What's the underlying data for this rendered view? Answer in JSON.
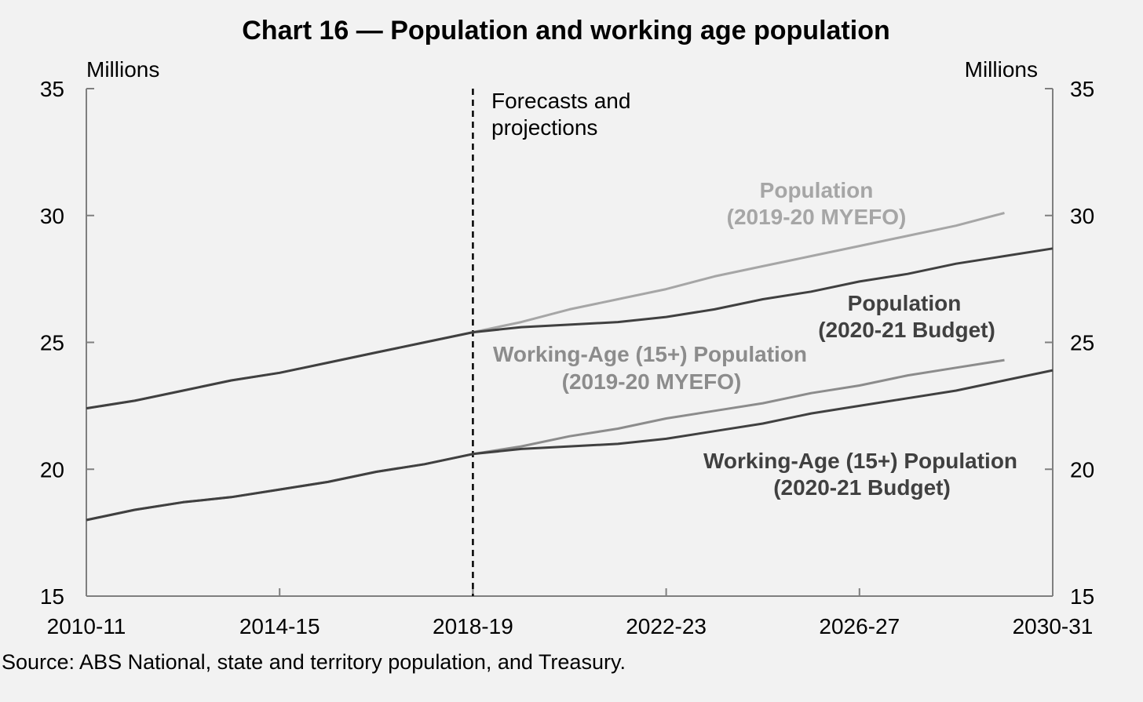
{
  "chart_data": {
    "type": "line",
    "title": "Chart 16 — Population and working age population",
    "left_axis_unit": "Millions",
    "right_axis_unit": "Millions",
    "ylim": [
      15,
      35
    ],
    "y_ticks": [
      "15",
      "20",
      "25",
      "30",
      "35"
    ],
    "x_tick_labels": [
      "2010-11",
      "2014-15",
      "2018-19",
      "2022-23",
      "2026-27",
      "2030-31"
    ],
    "forecast_label": [
      "Forecasts and",
      "projections"
    ],
    "source": "Source: ABS National, state and territory population, and Treasury.",
    "grid": false,
    "legend": "inline labels",
    "series": [
      {
        "name_lines": [
          "Population",
          "(2019-20 MYEFO)"
        ],
        "color": "#a6a6a6",
        "x": [
          "2010-11",
          "2011-12",
          "2012-13",
          "2013-14",
          "2014-15",
          "2015-16",
          "2016-17",
          "2017-18",
          "2018-19",
          "2019-20",
          "2020-21",
          "2021-22",
          "2022-23",
          "2023-24",
          "2024-25",
          "2025-26",
          "2026-27",
          "2027-28",
          "2028-29",
          "2029-30"
        ],
        "values": [
          22.4,
          22.7,
          23.1,
          23.5,
          23.8,
          24.2,
          24.6,
          25.0,
          25.4,
          25.8,
          26.3,
          26.7,
          27.1,
          27.6,
          28.0,
          28.4,
          28.8,
          29.2,
          29.6,
          30.1
        ]
      },
      {
        "name_lines": [
          "Population",
          "(2020-21 Budget)"
        ],
        "color": "#404040",
        "x": [
          "2010-11",
          "2011-12",
          "2012-13",
          "2013-14",
          "2014-15",
          "2015-16",
          "2016-17",
          "2017-18",
          "2018-19",
          "2019-20",
          "2020-21",
          "2021-22",
          "2022-23",
          "2023-24",
          "2024-25",
          "2025-26",
          "2026-27",
          "2027-28",
          "2028-29",
          "2029-30",
          "2030-31"
        ],
        "values": [
          22.4,
          22.7,
          23.1,
          23.5,
          23.8,
          24.2,
          24.6,
          25.0,
          25.4,
          25.6,
          25.7,
          25.8,
          26.0,
          26.3,
          26.7,
          27.0,
          27.4,
          27.7,
          28.1,
          28.4,
          28.7
        ]
      },
      {
        "name_lines": [
          "Working-Age (15+) Population",
          "(2019-20 MYEFO)"
        ],
        "color": "#8c8c8c",
        "x": [
          "2010-11",
          "2011-12",
          "2012-13",
          "2013-14",
          "2014-15",
          "2015-16",
          "2016-17",
          "2017-18",
          "2018-19",
          "2019-20",
          "2020-21",
          "2021-22",
          "2022-23",
          "2023-24",
          "2024-25",
          "2025-26",
          "2026-27",
          "2027-28",
          "2028-29",
          "2029-30"
        ],
        "values": [
          18.0,
          18.4,
          18.7,
          18.9,
          19.2,
          19.5,
          19.9,
          20.2,
          20.6,
          20.9,
          21.3,
          21.6,
          22.0,
          22.3,
          22.6,
          23.0,
          23.3,
          23.7,
          24.0,
          24.3
        ]
      },
      {
        "name_lines": [
          "Working-Age (15+) Population",
          "(2020-21 Budget)"
        ],
        "color": "#404040",
        "x": [
          "2010-11",
          "2011-12",
          "2012-13",
          "2013-14",
          "2014-15",
          "2015-16",
          "2016-17",
          "2017-18",
          "2018-19",
          "2019-20",
          "2020-21",
          "2021-22",
          "2022-23",
          "2023-24",
          "2024-25",
          "2025-26",
          "2026-27",
          "2027-28",
          "2028-29",
          "2029-30",
          "2030-31"
        ],
        "values": [
          18.0,
          18.4,
          18.7,
          18.9,
          19.2,
          19.5,
          19.9,
          20.2,
          20.6,
          20.8,
          20.9,
          21.0,
          21.2,
          21.5,
          21.8,
          22.2,
          22.5,
          22.8,
          23.1,
          23.5,
          23.9
        ]
      }
    ]
  }
}
